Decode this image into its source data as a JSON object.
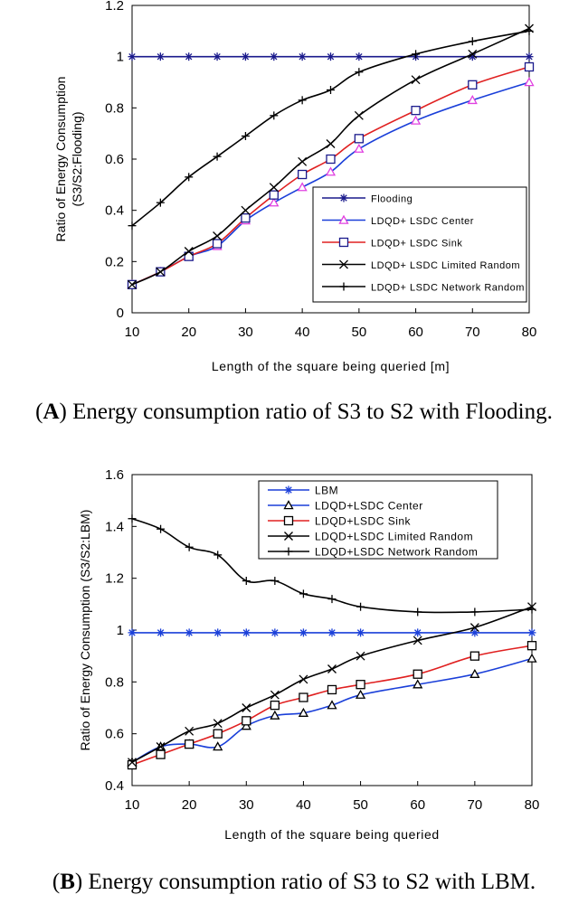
{
  "chart_data": [
    {
      "type": "line",
      "title": "",
      "panel_letter": "A",
      "caption": ") Energy consumption ratio of S3 to S2 with Flooding.",
      "xlabel": "Length of the square being queried [m]",
      "ylabel": "Ratio of Energy Consumption",
      "ylabel2": "(S3/S2:Flooding)",
      "xlim": [
        10,
        80
      ],
      "ylim": [
        0,
        1.2
      ],
      "xticks": [
        10,
        20,
        30,
        40,
        50,
        60,
        70,
        80
      ],
      "yticks": [
        0,
        0.2,
        0.4,
        0.6,
        0.8,
        1,
        1.2
      ],
      "ytick_labels": [
        "0",
        "0.2",
        "0.4",
        "0.6",
        "0.8",
        "1",
        "1.2"
      ],
      "legend_position": "lower-right",
      "series": [
        {
          "name": "Flooding",
          "color": "#1a1a8c",
          "marker": "asterisk",
          "x": [
            10,
            15,
            20,
            25,
            30,
            35,
            40,
            45,
            50,
            60,
            70,
            80
          ],
          "values": [
            1,
            1,
            1,
            1,
            1,
            1,
            1,
            1,
            1,
            1,
            1,
            1
          ]
        },
        {
          "name": "LDQD+ LSDC Center",
          "color": "#1a3fd9",
          "marker": "triangle",
          "marker_color": "#e040e0",
          "x": [
            10,
            15,
            20,
            25,
            30,
            35,
            40,
            45,
            50,
            60,
            70,
            80
          ],
          "values": [
            0.11,
            0.16,
            0.22,
            0.26,
            0.36,
            0.43,
            0.49,
            0.55,
            0.64,
            0.75,
            0.83,
            0.9
          ]
        },
        {
          "name": "LDQD+ LSDC Sink",
          "color": "#e02020",
          "marker": "square",
          "marker_color": "#1a1a8c",
          "x": [
            10,
            15,
            20,
            25,
            30,
            35,
            40,
            45,
            50,
            60,
            70,
            80
          ],
          "values": [
            0.11,
            0.16,
            0.22,
            0.27,
            0.37,
            0.46,
            0.54,
            0.6,
            0.68,
            0.79,
            0.89,
            0.96
          ]
        },
        {
          "name": "LDQD+ LSDC Limited Random",
          "color": "#000000",
          "marker": "x",
          "x": [
            10,
            15,
            20,
            25,
            30,
            35,
            40,
            45,
            50,
            60,
            70,
            80
          ],
          "values": [
            0.11,
            0.16,
            0.24,
            0.3,
            0.4,
            0.49,
            0.59,
            0.66,
            0.77,
            0.91,
            1.01,
            1.11
          ]
        },
        {
          "name": "LDQD+ LSDC Network Random",
          "color": "#000000",
          "marker": "plus",
          "x": [
            10,
            15,
            20,
            25,
            30,
            35,
            40,
            45,
            50,
            60,
            70,
            80
          ],
          "values": [
            0.34,
            0.43,
            0.53,
            0.61,
            0.69,
            0.77,
            0.83,
            0.87,
            0.94,
            1.01,
            1.06,
            1.1
          ]
        }
      ]
    },
    {
      "type": "line",
      "title": "",
      "panel_letter": "B",
      "caption": ") Energy consumption ratio of S3 to S2 with LBM.",
      "xlabel": "Length of the square being queried",
      "ylabel": "Ratio of Energy Consumption (S3/S2:LBM)",
      "xlim": [
        10,
        80
      ],
      "ylim": [
        0.4,
        1.6
      ],
      "xticks": [
        10,
        20,
        30,
        40,
        50,
        60,
        70,
        80
      ],
      "yticks": [
        0.4,
        0.6,
        0.8,
        1,
        1.2,
        1.4,
        1.6
      ],
      "ytick_labels": [
        "0.4",
        "0.6",
        "0.8",
        "1",
        "1.2",
        "1.4",
        "1.6"
      ],
      "legend_position": "top-right",
      "series": [
        {
          "name": "LBM",
          "color": "#1a3fd9",
          "marker": "asterisk",
          "x": [
            10,
            15,
            20,
            25,
            30,
            35,
            40,
            45,
            50,
            60,
            70,
            80
          ],
          "values": [
            0.99,
            0.99,
            0.99,
            0.99,
            0.99,
            0.99,
            0.99,
            0.99,
            0.99,
            0.99,
            0.99,
            0.99
          ]
        },
        {
          "name": "LDQD+LSDC Center",
          "color": "#1a3fd9",
          "marker": "triangle",
          "marker_color": "#000000",
          "x": [
            10,
            15,
            20,
            25,
            30,
            35,
            40,
            45,
            50,
            60,
            70,
            80
          ],
          "values": [
            0.49,
            0.55,
            0.56,
            0.55,
            0.63,
            0.67,
            0.68,
            0.71,
            0.75,
            0.79,
            0.83,
            0.89
          ]
        },
        {
          "name": "LDQD+LSDC Sink",
          "color": "#e02020",
          "marker": "square",
          "marker_color": "#000000",
          "x": [
            10,
            15,
            20,
            25,
            30,
            35,
            40,
            45,
            50,
            60,
            70,
            80
          ],
          "values": [
            0.48,
            0.52,
            0.56,
            0.6,
            0.65,
            0.71,
            0.74,
            0.77,
            0.79,
            0.83,
            0.9,
            0.94
          ]
        },
        {
          "name": "LDQD+LSDC Limited Random",
          "color": "#000000",
          "marker": "x",
          "x": [
            10,
            15,
            20,
            25,
            30,
            35,
            40,
            45,
            50,
            60,
            70,
            80
          ],
          "values": [
            0.49,
            0.55,
            0.61,
            0.64,
            0.7,
            0.75,
            0.81,
            0.85,
            0.9,
            0.96,
            1.01,
            1.09
          ]
        },
        {
          "name": "LDQD+LSDC Network Random",
          "color": "#000000",
          "marker": "plus",
          "x": [
            10,
            15,
            20,
            25,
            30,
            35,
            40,
            45,
            50,
            60,
            70,
            80
          ],
          "values": [
            1.43,
            1.39,
            1.32,
            1.29,
            1.19,
            1.19,
            1.14,
            1.12,
            1.09,
            1.07,
            1.07,
            1.08
          ]
        }
      ]
    }
  ]
}
